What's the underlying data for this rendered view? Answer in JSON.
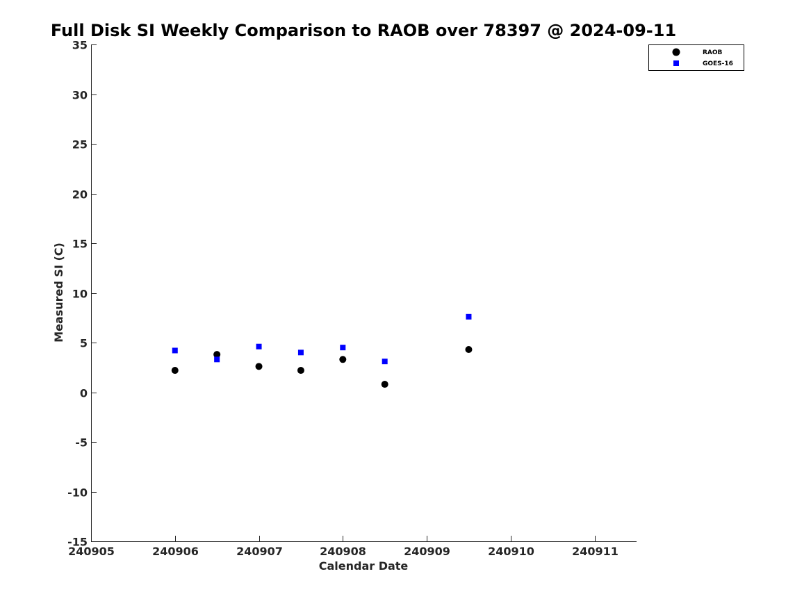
{
  "chart_data": {
    "type": "scatter",
    "title": "Full Disk SI Weekly Comparison to RAOB over 78397 @ 2024-09-11",
    "xlabel": "Calendar Date",
    "ylabel": "Measured SI (C)",
    "xlim": [
      240905,
      240911.5
    ],
    "ylim": [
      -15,
      35
    ],
    "xticks": [
      240905,
      240906,
      240907,
      240908,
      240909,
      240910,
      240911
    ],
    "xtick_labels": [
      "240905",
      "240906",
      "240907",
      "240908",
      "240909",
      "240910",
      "240911"
    ],
    "yticks": [
      35,
      30,
      25,
      20,
      15,
      10,
      5,
      0,
      -5,
      -10,
      -15
    ],
    "ytick_labels": [
      "35",
      "30",
      "25",
      "20",
      "15",
      "10",
      "5",
      "0",
      "-5",
      "-10",
      "-15"
    ],
    "grid": false,
    "legend_position": "top-right",
    "series": [
      {
        "name": "RAOB",
        "marker": "circle",
        "color": "#000000",
        "x": [
          240906,
          240906.5,
          240907,
          240907.5,
          240908,
          240908.5,
          240909.5
        ],
        "y": [
          2.2,
          3.8,
          2.6,
          2.2,
          3.3,
          0.8,
          4.3
        ]
      },
      {
        "name": "GOES-16",
        "marker": "square",
        "color": "#0000ff",
        "x": [
          240906,
          240906.5,
          240907,
          240907.5,
          240908,
          240908.5,
          240909.5
        ],
        "y": [
          4.2,
          3.3,
          4.6,
          4.0,
          4.5,
          3.1,
          7.6
        ]
      }
    ]
  }
}
